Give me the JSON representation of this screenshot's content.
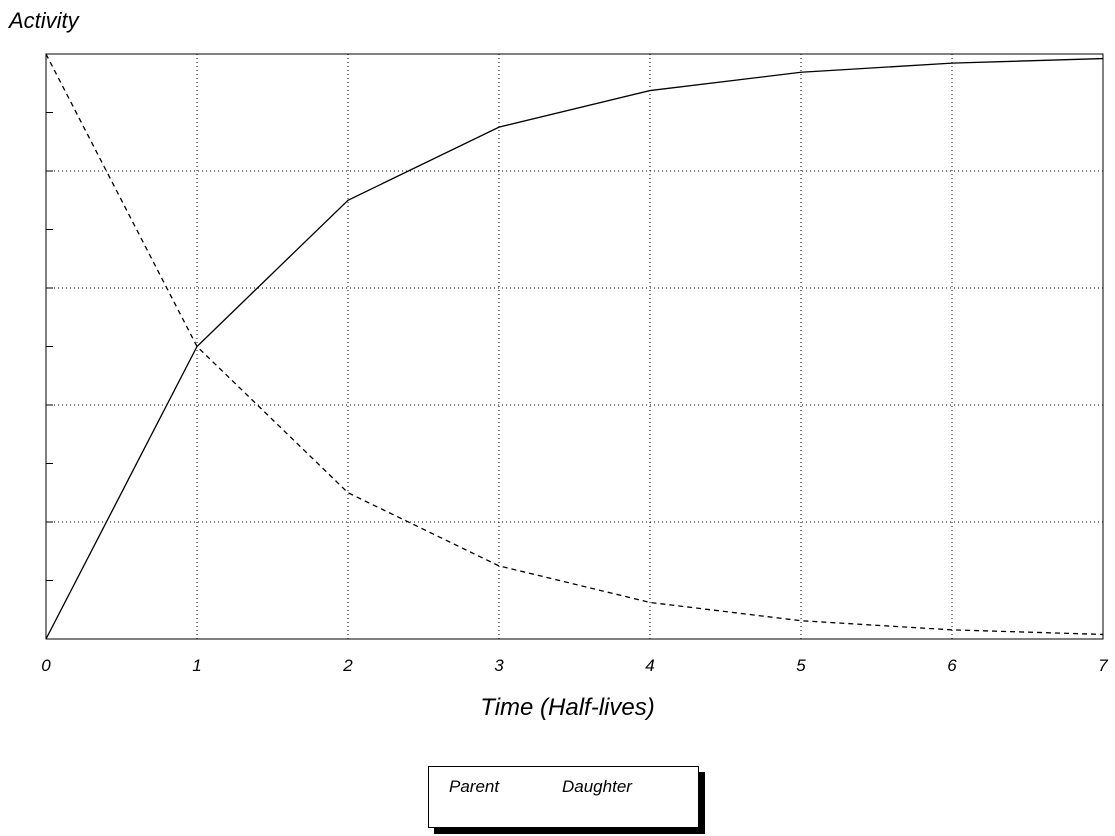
{
  "chart_data": {
    "type": "line",
    "ylabel": "Activity",
    "xlabel": "Time (Half-lives)",
    "x": [
      0,
      1,
      2,
      3,
      4,
      5,
      6,
      7
    ],
    "xlim": [
      0,
      7
    ],
    "ylim": [
      0,
      1
    ],
    "grid": true,
    "y_tick_count": 10,
    "series": [
      {
        "name": "Parent",
        "style": "dashed",
        "color": "#000000",
        "values": [
          1.0,
          0.5,
          0.25,
          0.125,
          0.0625,
          0.03125,
          0.015625,
          0.0078125
        ]
      },
      {
        "name": "Daughter",
        "style": "solid",
        "color": "#000000",
        "values": [
          0.0,
          0.5,
          0.75,
          0.875,
          0.9375,
          0.96875,
          0.984375,
          0.9921875
        ]
      }
    ],
    "legend": {
      "position": "bottom-center"
    }
  },
  "x_tick_labels": [
    "0",
    "1",
    "2",
    "3",
    "4",
    "5",
    "6",
    "7"
  ]
}
